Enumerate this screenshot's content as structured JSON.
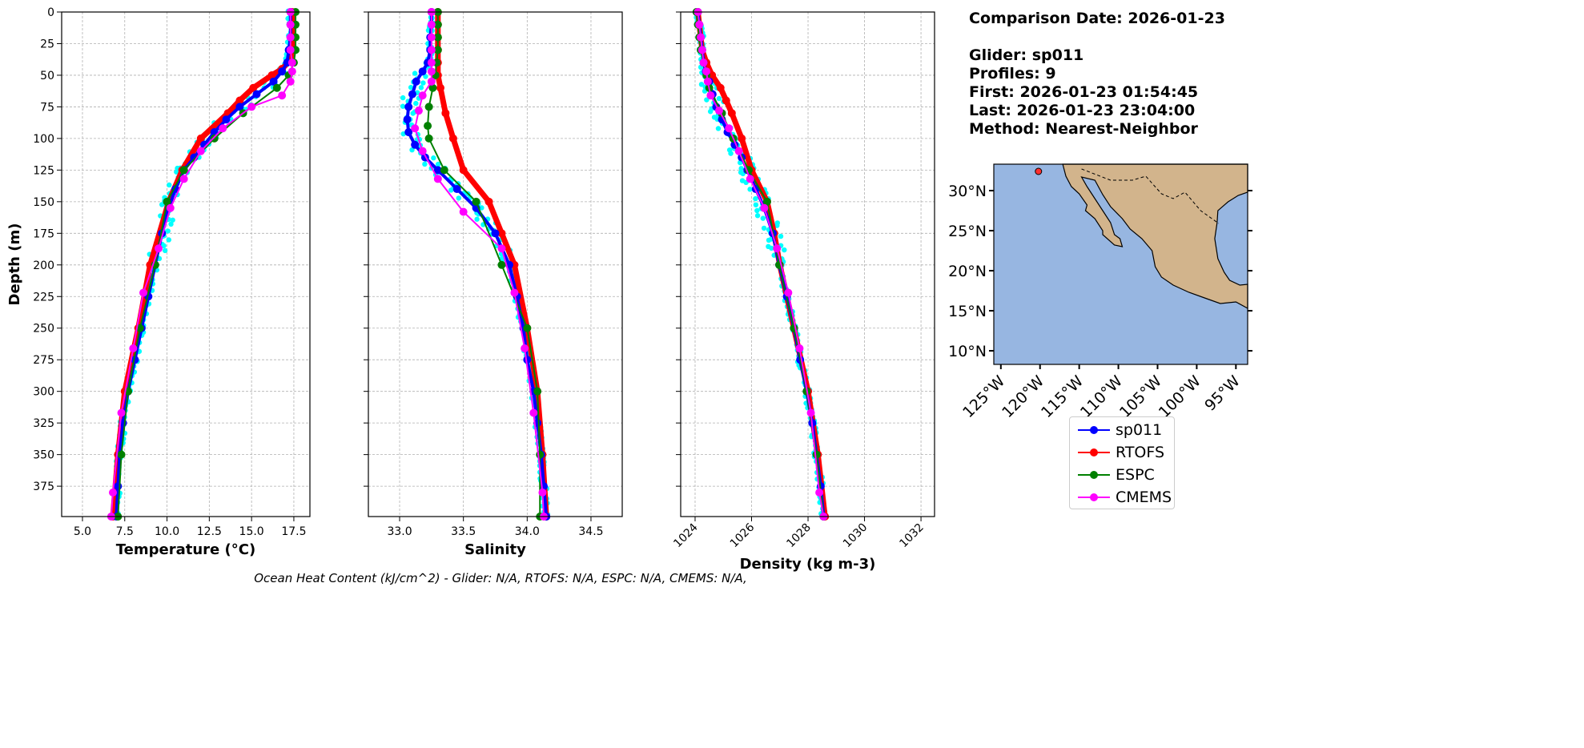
{
  "info": {
    "comparison_date": "Comparison Date: 2026-01-23",
    "glider": "Glider: sp011",
    "profiles": "Profiles: 9",
    "first": "First: 2026-01-23 01:54:45",
    "last": "Last: 2026-01-23 23:04:00",
    "method": "Method: Nearest-Neighbor"
  },
  "footer": "Ocean Heat Content (kJ/cm^2) - Glider: N/A,  RTOFS: N/A,  ESPC: N/A,  CMEMS: N/A,",
  "legend": [
    {
      "label": "sp011",
      "color": "#0000ff"
    },
    {
      "label": "RTOFS",
      "color": "#ff0000"
    },
    {
      "label": "ESPC",
      "color": "#008000"
    },
    {
      "label": "CMEMS",
      "color": "#ff00ff"
    }
  ],
  "glider_points_color": "#00ffff",
  "chart_data": [
    {
      "type": "line",
      "xlabel": "Temperature (°C)",
      "ylabel": "Depth (m)",
      "xlim": [
        3.77,
        18.45
      ],
      "ylim": [
        399,
        0
      ],
      "xticks": [
        "5.0",
        "7.5",
        "10.0",
        "12.5",
        "15.0",
        "17.5"
      ],
      "yticks": [
        "0",
        "25",
        "50",
        "75",
        "100",
        "125",
        "150",
        "175",
        "200",
        "225",
        "250",
        "275",
        "300",
        "325",
        "350",
        "375"
      ],
      "grid": true,
      "series": [
        {
          "name": "sp011",
          "depth": [
            0,
            10,
            20,
            30,
            40,
            47,
            55,
            65,
            75,
            85,
            95,
            105,
            115,
            125,
            140,
            155,
            175,
            200,
            225,
            250,
            275,
            300,
            325,
            350,
            375,
            399
          ],
          "values": [
            17.3,
            17.3,
            17.3,
            17.2,
            17.1,
            16.8,
            16.3,
            15.3,
            14.3,
            13.5,
            12.8,
            12.2,
            11.6,
            11.0,
            10.5,
            10.1,
            9.7,
            9.3,
            8.9,
            8.5,
            8.1,
            7.7,
            7.4,
            7.2,
            7.1,
            7.0
          ]
        },
        {
          "name": "RTOFS",
          "depth": [
            0,
            10,
            20,
            30,
            38,
            45,
            50,
            60,
            70,
            80,
            100,
            125,
            150,
            200,
            250,
            300,
            350,
            399
          ],
          "values": [
            17.4,
            17.4,
            17.4,
            17.4,
            17.3,
            16.8,
            16.2,
            15.1,
            14.3,
            13.6,
            12.0,
            10.9,
            10.1,
            9.0,
            8.3,
            7.5,
            7.1,
            6.8
          ]
        },
        {
          "name": "ESPC",
          "depth": [
            0,
            10,
            20,
            30,
            40,
            50,
            60,
            80,
            100,
            125,
            150,
            200,
            250,
            300,
            350,
            399
          ],
          "values": [
            17.6,
            17.6,
            17.6,
            17.6,
            17.5,
            17.2,
            16.5,
            14.5,
            12.8,
            11.0,
            10.0,
            9.3,
            8.4,
            7.7,
            7.3,
            7.1
          ]
        },
        {
          "name": "CMEMS",
          "depth": [
            0,
            10,
            20,
            30,
            40,
            47,
            55,
            66,
            75,
            92,
            110,
            132,
            155,
            187,
            222,
            266,
            317,
            380,
            399
          ],
          "values": [
            17.3,
            17.3,
            17.3,
            17.3,
            17.4,
            17.4,
            17.3,
            16.8,
            15.0,
            13.3,
            12.0,
            11.0,
            10.2,
            9.5,
            8.6,
            8.0,
            7.3,
            6.8,
            6.7
          ]
        }
      ]
    },
    {
      "type": "line",
      "xlabel": "Salinity",
      "ylabel": "",
      "xlim": [
        32.755,
        34.745
      ],
      "ylim": [
        399,
        0
      ],
      "xticks": [
        "33.0",
        "33.5",
        "34.0",
        "34.5"
      ],
      "yticks": [],
      "grid": true,
      "series": [
        {
          "name": "sp011",
          "depth": [
            0,
            10,
            20,
            30,
            40,
            47,
            55,
            65,
            75,
            85,
            95,
            105,
            115,
            125,
            140,
            155,
            175,
            200,
            225,
            250,
            275,
            300,
            325,
            350,
            375,
            399
          ],
          "values": [
            33.25,
            33.25,
            33.24,
            33.24,
            33.22,
            33.18,
            33.13,
            33.1,
            33.07,
            33.06,
            33.07,
            33.12,
            33.2,
            33.3,
            33.45,
            33.6,
            33.75,
            33.86,
            33.92,
            33.97,
            34.0,
            34.05,
            34.08,
            34.11,
            34.13,
            34.15
          ]
        },
        {
          "name": "RTOFS",
          "depth": [
            0,
            10,
            20,
            30,
            40,
            50,
            60,
            80,
            100,
            125,
            150,
            175,
            200,
            250,
            300,
            350,
            399
          ],
          "values": [
            33.3,
            33.3,
            33.3,
            33.3,
            33.3,
            33.3,
            33.32,
            33.36,
            33.42,
            33.5,
            33.7,
            33.8,
            33.9,
            34.0,
            34.08,
            34.12,
            34.15
          ]
        },
        {
          "name": "ESPC",
          "depth": [
            0,
            10,
            20,
            30,
            40,
            50,
            60,
            75,
            90,
            100,
            125,
            150,
            200,
            250,
            300,
            350,
            399
          ],
          "values": [
            33.3,
            33.3,
            33.3,
            33.3,
            33.29,
            33.28,
            33.26,
            33.23,
            33.22,
            33.23,
            33.35,
            33.6,
            33.8,
            34.0,
            34.08,
            34.1,
            34.1
          ]
        },
        {
          "name": "CMEMS",
          "depth": [
            0,
            10,
            20,
            30,
            40,
            47,
            55,
            66,
            78,
            92,
            110,
            132,
            158,
            187,
            222,
            266,
            317,
            380,
            399
          ],
          "values": [
            33.25,
            33.25,
            33.25,
            33.25,
            33.25,
            33.25,
            33.25,
            33.18,
            33.15,
            33.12,
            33.18,
            33.3,
            33.5,
            33.8,
            33.9,
            33.98,
            34.05,
            34.12,
            34.13
          ]
        }
      ]
    },
    {
      "type": "line",
      "xlabel": "Density (kg m-3)",
      "ylabel": "",
      "xlim": [
        1023.49,
        1032.48
      ],
      "ylim": [
        399,
        0
      ],
      "xticks": [
        "1024",
        "1026",
        "1028",
        "1030",
        "1032"
      ],
      "yticks": [],
      "grid": true,
      "series": [
        {
          "name": "sp011",
          "depth": [
            0,
            10,
            20,
            30,
            40,
            47,
            55,
            65,
            75,
            85,
            95,
            105,
            115,
            125,
            140,
            155,
            175,
            200,
            225,
            250,
            275,
            300,
            325,
            350,
            375,
            399
          ],
          "values": [
            1024.1,
            1024.15,
            1024.2,
            1024.25,
            1024.3,
            1024.38,
            1024.5,
            1024.62,
            1024.75,
            1024.95,
            1025.15,
            1025.4,
            1025.65,
            1025.85,
            1026.15,
            1026.45,
            1026.75,
            1026.98,
            1027.25,
            1027.5,
            1027.72,
            1027.95,
            1028.15,
            1028.3,
            1028.45,
            1028.55
          ]
        },
        {
          "name": "RTOFS",
          "depth": [
            0,
            10,
            20,
            30,
            40,
            50,
            60,
            70,
            80,
            100,
            125,
            150,
            175,
            200,
            250,
            300,
            350,
            399
          ],
          "values": [
            1024.1,
            1024.15,
            1024.2,
            1024.25,
            1024.4,
            1024.6,
            1024.9,
            1025.1,
            1025.3,
            1025.65,
            1026.0,
            1026.55,
            1026.8,
            1027.0,
            1027.5,
            1028.0,
            1028.35,
            1028.6
          ]
        },
        {
          "name": "ESPC",
          "depth": [
            0,
            10,
            20,
            30,
            40,
            50,
            60,
            80,
            100,
            125,
            150,
            200,
            250,
            300,
            350,
            399
          ],
          "values": [
            1024.05,
            1024.1,
            1024.15,
            1024.2,
            1024.3,
            1024.4,
            1024.5,
            1024.95,
            1025.35,
            1025.9,
            1026.55,
            1026.98,
            1027.5,
            1027.95,
            1028.3,
            1028.55
          ]
        },
        {
          "name": "CMEMS",
          "depth": [
            0,
            10,
            20,
            30,
            40,
            47,
            55,
            66,
            78,
            92,
            110,
            132,
            155,
            187,
            222,
            266,
            317,
            380,
            399
          ],
          "values": [
            1024.1,
            1024.15,
            1024.2,
            1024.25,
            1024.3,
            1024.4,
            1024.45,
            1024.55,
            1024.85,
            1025.2,
            1025.55,
            1025.95,
            1026.45,
            1026.9,
            1027.3,
            1027.7,
            1028.1,
            1028.4,
            1028.55
          ]
        }
      ]
    }
  ],
  "map": {
    "lat_ticks": [
      "10°N",
      "15°N",
      "20°N",
      "25°N",
      "30°N"
    ],
    "lat_values": [
      10,
      15,
      20,
      25,
      30
    ],
    "lon_ticks": [
      "125°W",
      "120°W",
      "115°W",
      "110°W",
      "105°W",
      "100°W",
      "95°W"
    ],
    "lon_values": [
      -125,
      -120,
      -115,
      -110,
      -105,
      -100,
      -95
    ],
    "lon_range": [
      -125.9,
      -93.5
    ],
    "lat_range": [
      8.3,
      33.3
    ],
    "ocean_color": "#97b6e1",
    "land_color": "#d2b48c",
    "glider_position": [
      -120.2,
      32.4
    ]
  }
}
